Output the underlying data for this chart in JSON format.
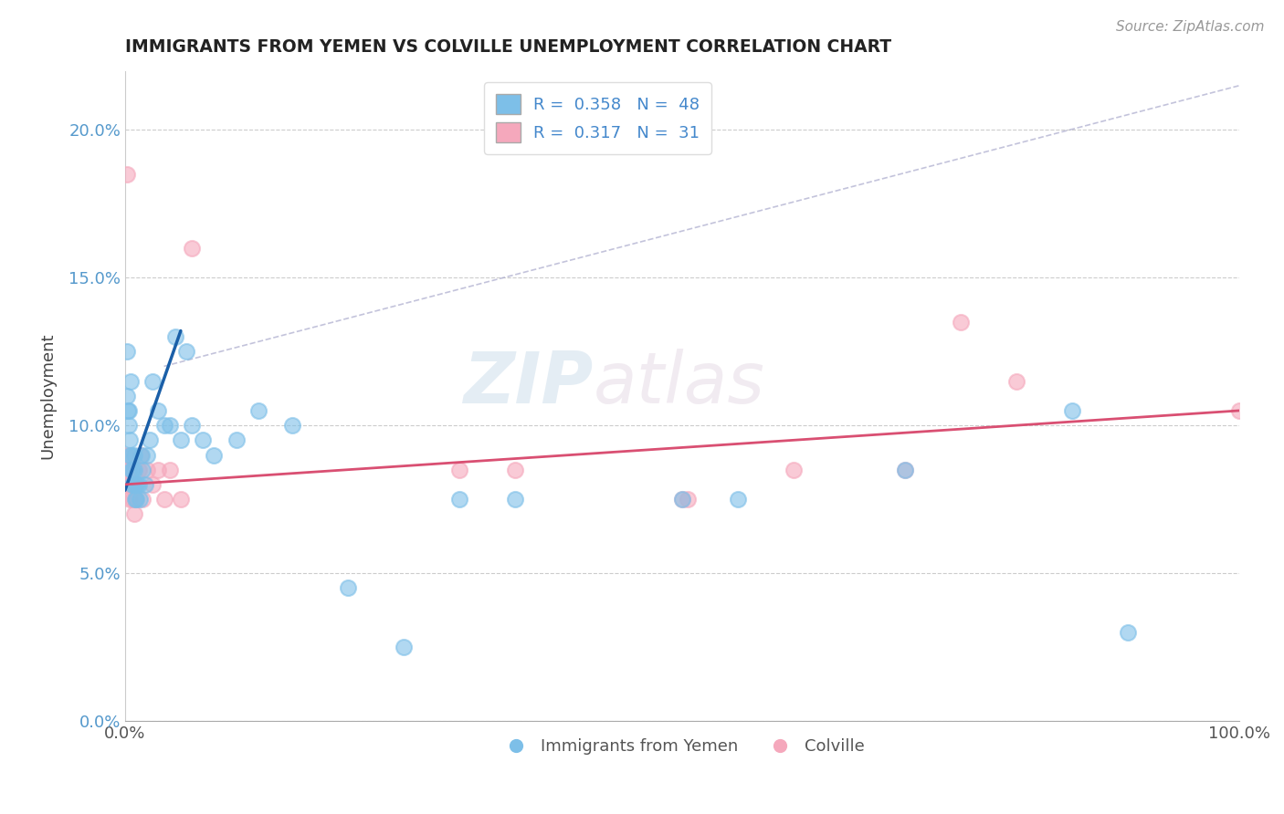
{
  "title": "IMMIGRANTS FROM YEMEN VS COLVILLE UNEMPLOYMENT CORRELATION CHART",
  "source": "Source: ZipAtlas.com",
  "xlabel": "",
  "ylabel": "Unemployment",
  "xlim": [
    0.0,
    100.0
  ],
  "ylim": [
    0.0,
    22.0
  ],
  "yticks": [
    0.0,
    5.0,
    10.0,
    15.0,
    20.0
  ],
  "xticks": [
    0.0,
    100.0
  ],
  "blue_r": 0.358,
  "blue_n": 48,
  "pink_r": 0.317,
  "pink_n": 31,
  "blue_color": "#7dbfe8",
  "pink_color": "#f5a8bc",
  "blue_line_color": "#1a5fa8",
  "pink_line_color": "#d94f72",
  "blue_points": [
    [
      0.15,
      12.5
    ],
    [
      0.2,
      11.0
    ],
    [
      0.25,
      10.5
    ],
    [
      0.3,
      10.0
    ],
    [
      0.35,
      10.5
    ],
    [
      0.4,
      9.5
    ],
    [
      0.45,
      9.0
    ],
    [
      0.5,
      11.5
    ],
    [
      0.55,
      9.0
    ],
    [
      0.6,
      8.5
    ],
    [
      0.65,
      8.0
    ],
    [
      0.7,
      8.5
    ],
    [
      0.75,
      8.0
    ],
    [
      0.8,
      9.0
    ],
    [
      0.85,
      8.5
    ],
    [
      0.9,
      8.0
    ],
    [
      0.95,
      7.5
    ],
    [
      1.0,
      7.5
    ],
    [
      1.1,
      8.0
    ],
    [
      1.2,
      8.0
    ],
    [
      1.3,
      7.5
    ],
    [
      1.5,
      9.0
    ],
    [
      1.6,
      8.5
    ],
    [
      1.8,
      8.0
    ],
    [
      2.0,
      9.0
    ],
    [
      2.2,
      9.5
    ],
    [
      2.5,
      11.5
    ],
    [
      3.0,
      10.5
    ],
    [
      3.5,
      10.0
    ],
    [
      4.0,
      10.0
    ],
    [
      4.5,
      13.0
    ],
    [
      5.0,
      9.5
    ],
    [
      5.5,
      12.5
    ],
    [
      6.0,
      10.0
    ],
    [
      7.0,
      9.5
    ],
    [
      8.0,
      9.0
    ],
    [
      10.0,
      9.5
    ],
    [
      12.0,
      10.5
    ],
    [
      15.0,
      10.0
    ],
    [
      20.0,
      4.5
    ],
    [
      25.0,
      2.5
    ],
    [
      30.0,
      7.5
    ],
    [
      35.0,
      7.5
    ],
    [
      50.0,
      7.5
    ],
    [
      55.0,
      7.5
    ],
    [
      70.0,
      8.5
    ],
    [
      85.0,
      10.5
    ],
    [
      90.0,
      3.0
    ]
  ],
  "pink_points": [
    [
      0.1,
      9.0
    ],
    [
      0.15,
      8.5
    ],
    [
      0.2,
      8.0
    ],
    [
      0.3,
      8.5
    ],
    [
      0.4,
      7.5
    ],
    [
      0.5,
      8.0
    ],
    [
      0.6,
      8.0
    ],
    [
      0.7,
      7.5
    ],
    [
      0.8,
      7.0
    ],
    [
      0.9,
      7.5
    ],
    [
      1.0,
      8.0
    ],
    [
      1.2,
      8.5
    ],
    [
      1.4,
      9.0
    ],
    [
      1.6,
      7.5
    ],
    [
      2.0,
      8.5
    ],
    [
      2.5,
      8.0
    ],
    [
      3.0,
      8.5
    ],
    [
      3.5,
      7.5
    ],
    [
      4.0,
      8.5
    ],
    [
      5.0,
      7.5
    ],
    [
      0.2,
      18.5
    ],
    [
      6.0,
      16.0
    ],
    [
      30.0,
      8.5
    ],
    [
      35.0,
      8.5
    ],
    [
      50.0,
      7.5
    ],
    [
      50.5,
      7.5
    ],
    [
      60.0,
      8.5
    ],
    [
      70.0,
      8.5
    ],
    [
      75.0,
      13.5
    ],
    [
      80.0,
      11.5
    ],
    [
      100.0,
      10.5
    ]
  ],
  "background_color": "#ffffff",
  "grid_color": "#cccccc",
  "watermark_zip": "ZIP",
  "watermark_atlas": "atlas",
  "legend_blue_label_r": "R =  0.358",
  "legend_blue_label_n": "N =  48",
  "legend_pink_label_r": "R =  0.317",
  "legend_pink_label_n": "N =  31"
}
